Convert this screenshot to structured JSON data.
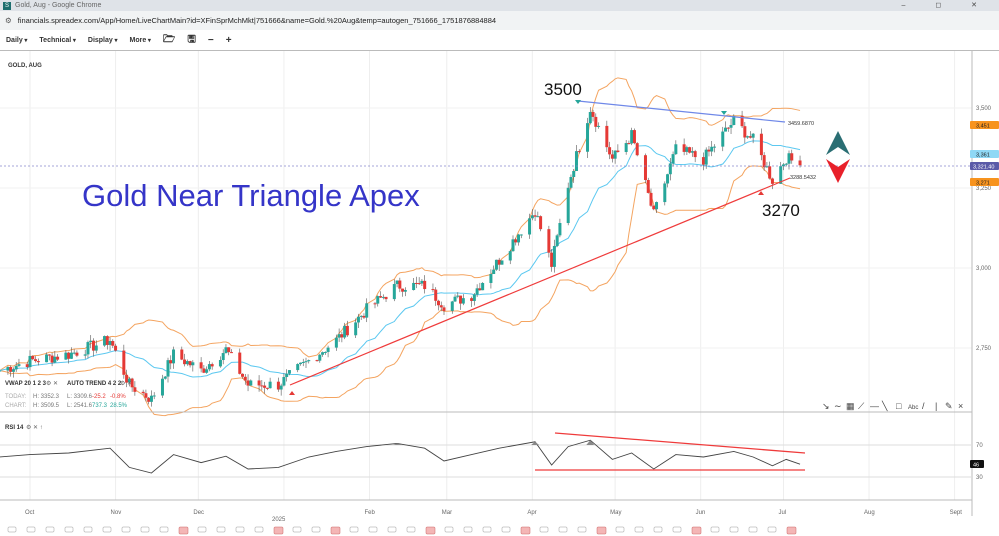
{
  "window": {
    "title": "Gold, Aug - Google Chrome",
    "controls": "–  ◻  ✕",
    "logo": "S"
  },
  "url": "financials.spreadex.com/App/Home/LiveChartMain?id=XFinSprMchMkt|751666&name=Gold.%20Aug&temp=autogen_751666_1751876884884",
  "toolbar": {
    "daily": "Daily",
    "technical": "Technical",
    "display": "Display",
    "more": "More",
    "icons": [
      "folder-open-icon",
      "save-icon",
      "zoom-out-icon",
      "zoom-in-icon"
    ]
  },
  "instrument": "GOLD, AUG",
  "annotations": {
    "headline": "Gold Near Triangle Apex",
    "high_label": "3500",
    "low_label": "3270",
    "upper_line_value": "3459.6870",
    "lower_line_value": "3288.5432"
  },
  "indicators": {
    "vwap": "VWAP 20 1 2 3",
    "auto_trend": "AUTO TREND 4 2 2",
    "rsi": "RSI 14"
  },
  "stats": {
    "today": {
      "label": "TODAY:",
      "h": "H: 3352.3",
      "l": "L: 3309.6",
      "chg": "-25.2",
      "pct": "-0.8%"
    },
    "chart": {
      "label": "CHART:",
      "h": "H: 3509.5",
      "l": "L: 2541.6",
      "chg": "737.3",
      "pct": "28.5%"
    }
  },
  "price_axis": {
    "ticks": [
      "3,500",
      "3,250",
      "3,000",
      "2,750"
    ],
    "badges": {
      "upper_band": "3,451",
      "ma": "3,361",
      "last": "3,321.40",
      "lower_band": "3,271"
    }
  },
  "rsi_axis": {
    "ticks": [
      "70",
      "30"
    ],
    "badge": "46"
  },
  "time_axis": {
    "months": [
      "Oct",
      "Nov",
      "Dec",
      "Feb",
      "Mar",
      "Apr",
      "May",
      "Jun",
      "Jul",
      "Aug",
      "Sept"
    ],
    "year": "2025"
  },
  "colors": {
    "up": "#26a69a",
    "down": "#e53935",
    "ma": "#5bc8f0",
    "band": "#f4a460",
    "trend": "#ef3b3b",
    "resistance": "#6f88e8",
    "headline": "#3535c8",
    "arrow_up": "#2a6e73",
    "arrow_down": "#e8202a"
  },
  "chart_data": {
    "type": "candlestick",
    "ylim": [
      2500,
      3560
    ],
    "dates": [
      "2024-09-20",
      "2024-10-01",
      "2024-10-15",
      "2024-10-30",
      "2024-11-06",
      "2024-11-14",
      "2024-11-22",
      "2024-12-02",
      "2024-12-11",
      "2024-12-19",
      "2024-12-30",
      "2025-01-10",
      "2025-01-20",
      "2025-01-31",
      "2025-02-11",
      "2025-02-21",
      "2025-02-28",
      "2025-03-10",
      "2025-03-20",
      "2025-04-02",
      "2025-04-08",
      "2025-04-14",
      "2025-04-22",
      "2025-04-30",
      "2025-05-07",
      "2025-05-15",
      "2025-05-23",
      "2025-06-02",
      "2025-06-13",
      "2025-06-20",
      "2025-06-27",
      "2025-07-02",
      "2025-07-07"
    ],
    "close": [
      2680,
      2710,
      2730,
      2775,
      2635,
      2590,
      2730,
      2680,
      2745,
      2635,
      2635,
      2710,
      2775,
      2870,
      2945,
      2945,
      2885,
      2915,
      3025,
      3180,
      3010,
      3260,
      3500,
      3340,
      3415,
      3165,
      3370,
      3340,
      3460,
      3400,
      3275,
      3345,
      3321
    ],
    "rsi": [
      55,
      58,
      60,
      66,
      42,
      35,
      58,
      48,
      56,
      40,
      42,
      55,
      62,
      68,
      72,
      66,
      50,
      58,
      66,
      74,
      45,
      68,
      76,
      52,
      60,
      40,
      58,
      55,
      62,
      55,
      44,
      52,
      46
    ]
  }
}
